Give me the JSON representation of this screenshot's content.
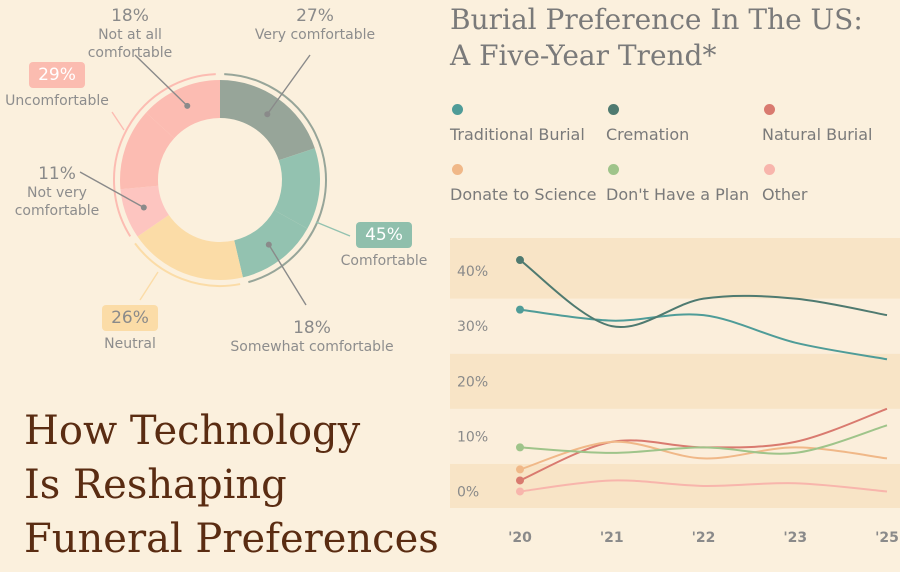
{
  "donut": {
    "segments": [
      {
        "pct": "27%",
        "label": "Very comfortable",
        "value": 27,
        "color": "#97a599"
      },
      {
        "pct": "45%",
        "label": "Comfortable",
        "value": 18,
        "color": "#93c2b0",
        "highlight": true,
        "badge_color": "#8fbfac"
      },
      {
        "pct": "18%",
        "label": "Somewhat comfortable",
        "value": 18,
        "color": "#93c2b0"
      },
      {
        "pct": "26%",
        "label": "Neutral",
        "value": 26,
        "color": "#fbdca7",
        "highlight": true,
        "badge_color": "#fbdca7"
      },
      {
        "pct": "11%",
        "label": "Not very comfortable",
        "label_lines": [
          "Not very",
          "comfortable"
        ],
        "value": 11,
        "color": "#fdc5c0"
      },
      {
        "pct": "29%",
        "label": "Uncomfortable",
        "value": 18,
        "color": "#fcbcb2",
        "highlight": true,
        "badge_color": "#fbbcb0"
      },
      {
        "pct": "18%",
        "label": "Not at all comfortable",
        "value": 18,
        "color": "#fcbcb2"
      }
    ]
  },
  "headline": [
    "How Technology",
    "Is Reshaping",
    "Funeral Preferences"
  ],
  "chart_data": {
    "type": "line",
    "title": "Burial Preference In The US: A Five-Year Trend*",
    "title_lines": [
      "Burial Preference In The US:",
      "A Five-Year Trend*"
    ],
    "x": [
      "'20",
      "'21",
      "'22",
      "'23",
      "'25"
    ],
    "ylim": [
      -3,
      46
    ],
    "yticks": [
      "0%",
      "10%",
      "20%",
      "30%",
      "40%"
    ],
    "ytick_values": [
      0,
      10,
      20,
      30,
      40
    ],
    "legend_position": "top",
    "series": [
      {
        "name": "Traditional Burial",
        "color": "#4f9c98",
        "values": [
          33,
          31,
          32,
          27,
          24
        ]
      },
      {
        "name": "Cremation",
        "color": "#4f7a70",
        "values": [
          42,
          30,
          35,
          35,
          32
        ]
      },
      {
        "name": "Natural Burial",
        "color": "#d97a6f",
        "values": [
          2,
          9,
          8,
          9,
          15
        ]
      },
      {
        "name": "Donate to Science",
        "color": "#f0b888",
        "values": [
          4,
          9,
          6,
          8,
          6
        ]
      },
      {
        "name": "Don't Have a Plan",
        "color": "#9fc48a",
        "values": [
          8,
          7,
          8,
          7,
          12
        ]
      },
      {
        "name": "Other",
        "color": "#f8b5ac",
        "values": [
          0,
          2,
          1,
          1.5,
          0
        ]
      }
    ]
  }
}
